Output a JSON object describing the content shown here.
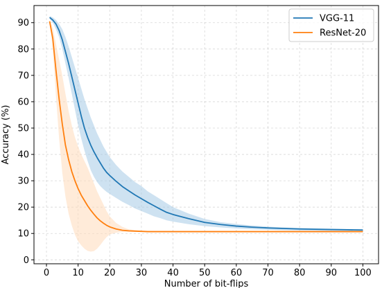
{
  "chart_data": {
    "type": "line",
    "xlabel": "Number of bit-flips",
    "ylabel": "Accuracy (%)",
    "xlim": [
      -3.95,
      104.95
    ],
    "ylim": [
      -1.5,
      96.5
    ],
    "xticks": [
      0,
      10,
      20,
      30,
      40,
      50,
      60,
      70,
      80,
      90,
      100
    ],
    "yticks": [
      0,
      10,
      20,
      30,
      40,
      50,
      60,
      70,
      80,
      90
    ],
    "grid": true,
    "legend_position": "top-right",
    "series": [
      {
        "name": "VGG-11",
        "color": "#1f77b4",
        "band_color": "#a6cbe5",
        "x": [
          1,
          2,
          3,
          4,
          5,
          6,
          7,
          8,
          9,
          10,
          11,
          12,
          13,
          14,
          15,
          16,
          17,
          18,
          19,
          20,
          22,
          24,
          26,
          28,
          30,
          32,
          34,
          36,
          38,
          40,
          45,
          50,
          55,
          60,
          65,
          70,
          75,
          80,
          85,
          90,
          95,
          100
        ],
        "values": [
          92,
          91,
          89.5,
          87,
          83.5,
          79,
          74.5,
          69.5,
          64.5,
          59.5,
          54.5,
          50,
          46.5,
          43.5,
          41,
          38.8,
          36.8,
          34.8,
          33.2,
          32,
          29.8,
          27.8,
          26.2,
          24.6,
          23.2,
          21.8,
          20.5,
          19.2,
          18,
          17.2,
          15.6,
          14.2,
          13.4,
          12.8,
          12.4,
          12.1,
          11.9,
          11.7,
          11.6,
          11.5,
          11.4,
          11.3
        ],
        "upper": [
          92.5,
          92,
          91,
          89.5,
          87.5,
          84.5,
          81,
          77,
          73,
          69,
          65,
          61,
          57.5,
          54,
          51,
          48,
          45.5,
          43,
          41,
          39,
          36,
          33.5,
          31.5,
          29.5,
          28,
          26,
          24.5,
          23,
          21.5,
          20,
          17.5,
          15.5,
          14.3,
          13.6,
          13,
          12.6,
          12.3,
          12.1,
          11.9,
          11.8,
          11.7,
          11.6
        ],
        "lower": [
          91.5,
          90,
          87.5,
          84.5,
          80,
          74.5,
          69,
          63,
          57,
          51,
          46,
          41.5,
          37.5,
          34,
          31.5,
          29.5,
          28,
          26.8,
          25.8,
          25,
          23.5,
          22,
          20.8,
          19.5,
          18.5,
          17.5,
          16.5,
          15.8,
          15,
          14.5,
          13.5,
          12.8,
          12.3,
          11.9,
          11.6,
          11.4,
          11.2,
          11.1,
          11,
          10.9,
          10.9,
          10.8
        ]
      },
      {
        "name": "ResNet-20",
        "color": "#ff7f0e",
        "band_color": "#ffdab9",
        "x": [
          1,
          2,
          3,
          4,
          5,
          6,
          7,
          8,
          9,
          10,
          11,
          12,
          13,
          14,
          15,
          16,
          17,
          18,
          19,
          20,
          22,
          24,
          26,
          28,
          30,
          32,
          35,
          40,
          50,
          60,
          70,
          80,
          90,
          100
        ],
        "values": [
          90.5,
          84,
          72,
          61,
          51.5,
          43.5,
          38,
          33.5,
          30,
          27,
          24.5,
          22.5,
          20.5,
          18.8,
          17.3,
          15.9,
          14.8,
          13.9,
          13.1,
          12.5,
          11.7,
          11.2,
          11,
          10.9,
          10.8,
          10.7,
          10.7,
          10.7,
          10.7,
          10.7,
          10.7,
          10.7,
          10.7,
          10.7
        ],
        "upper": [
          91,
          88,
          82,
          76,
          70,
          63,
          56.5,
          51,
          46.5,
          43,
          40,
          37.5,
          35,
          32,
          29,
          26,
          23.5,
          21,
          18.5,
          16.5,
          14,
          12.5,
          11.6,
          11.2,
          11,
          10.9,
          10.8,
          10.8,
          10.8,
          10.8,
          10.8,
          10.8,
          10.8,
          10.8
        ],
        "lower": [
          90,
          80,
          62,
          46,
          33,
          24,
          17.5,
          13,
          9.5,
          7,
          5.5,
          4.2,
          3.4,
          3.1,
          3.3,
          4.2,
          5.6,
          7.2,
          8.6,
          9.6,
          10.3,
          10.6,
          10.7,
          10.6,
          10.6,
          10.6,
          10.6,
          10.6,
          10.6,
          10.6,
          10.6,
          10.6,
          10.6,
          10.6
        ]
      }
    ]
  }
}
